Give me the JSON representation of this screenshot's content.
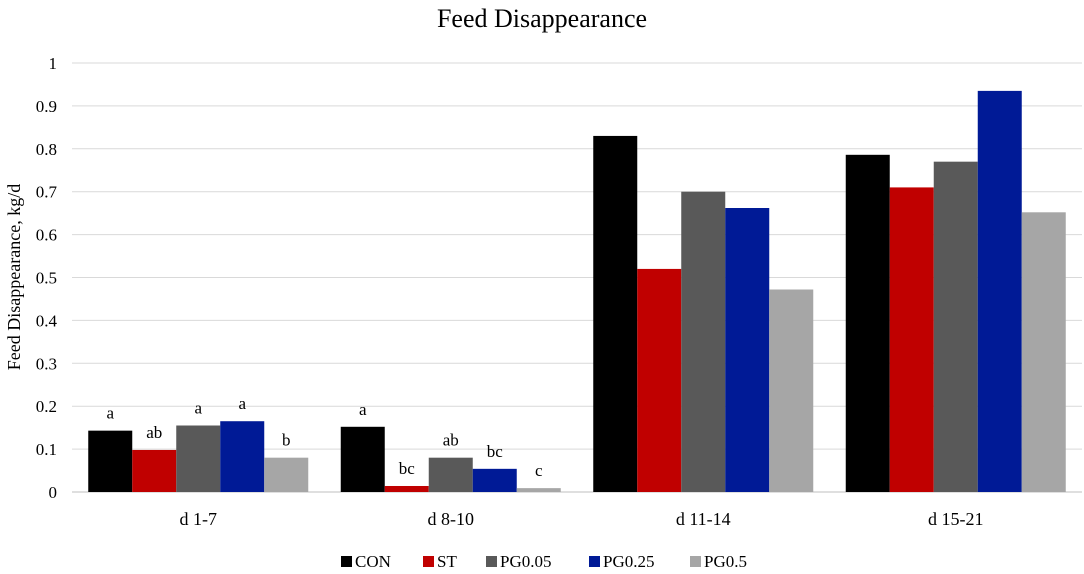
{
  "chart_data": {
    "type": "bar",
    "title": "Feed Disappearance",
    "xlabel": "",
    "ylabel": "Feed Disappearance, kg/d",
    "ylim": [
      0,
      1
    ],
    "yticks": [
      0,
      0.1,
      0.2,
      0.3,
      0.4,
      0.5,
      0.6,
      0.7,
      0.8,
      0.9,
      1
    ],
    "ytick_labels": [
      "0",
      "0.1",
      "0.2",
      "0.3",
      "0.4",
      "0.5",
      "0.6",
      "0.7",
      "0.8",
      "0.9",
      "1"
    ],
    "grid": true,
    "legend_position": "bottom",
    "categories": [
      "d 1-7",
      "d 8-10",
      "d 11-14",
      "d 15-21"
    ],
    "series": [
      {
        "name": "CON",
        "color": "#000000",
        "values": [
          0.143,
          0.152,
          0.83,
          0.786
        ],
        "labels": [
          "a",
          "a",
          "",
          ""
        ]
      },
      {
        "name": "ST",
        "color": "#c00000",
        "values": [
          0.098,
          0.014,
          0.52,
          0.71
        ],
        "labels": [
          "ab",
          "bc",
          "",
          ""
        ]
      },
      {
        "name": "PG0.05",
        "color": "#595959",
        "values": [
          0.155,
          0.08,
          0.7,
          0.77
        ],
        "labels": [
          "a",
          "ab",
          "",
          ""
        ]
      },
      {
        "name": "PG0.25",
        "color": "#001a96",
        "values": [
          0.165,
          0.054,
          0.662,
          0.935
        ],
        "labels": [
          "a",
          "bc",
          "",
          ""
        ]
      },
      {
        "name": "PG0.5",
        "color": "#a6a6a6",
        "values": [
          0.08,
          0.009,
          0.472,
          0.652
        ],
        "labels": [
          "b",
          "c",
          "",
          ""
        ]
      }
    ]
  }
}
